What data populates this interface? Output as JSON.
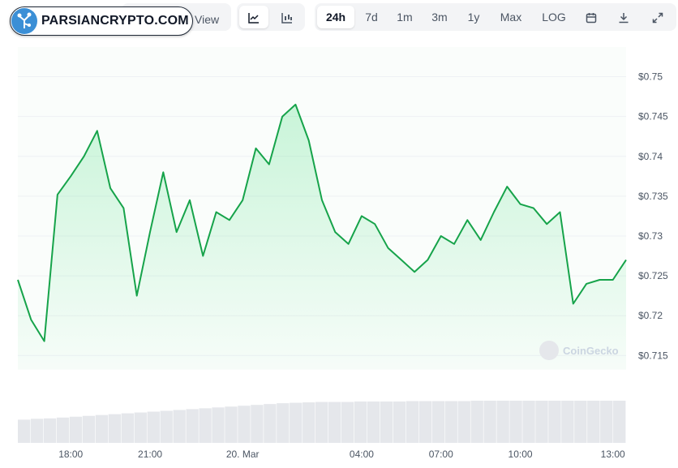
{
  "watermark_brand": "PARSIANCRYPTO.COM",
  "view_label": "View",
  "chart_type_icons": [
    "line-chart-icon",
    "candlestick-chart-icon"
  ],
  "ranges": [
    "24h",
    "7d",
    "1m",
    "3m",
    "1y",
    "Max",
    "LOG"
  ],
  "active_range": "24h",
  "tool_icons": [
    "calendar-icon",
    "download-icon",
    "fullscreen-icon"
  ],
  "source_watermark": "CoinGecko",
  "colors": {
    "line": "#16a34a",
    "fill": "#dcfce7",
    "volume": "#e5e7eb"
  },
  "chart_data": {
    "type": "line",
    "x": [
      "15:50",
      "16:30",
      "17:10",
      "17:40",
      "18:00",
      "18:30",
      "19:00",
      "19:30",
      "20:00",
      "20:30",
      "21:00",
      "21:20",
      "21:40",
      "22:10",
      "22:40",
      "23:10",
      "23:40",
      "20. Mar",
      "00:30",
      "00:50",
      "01:10",
      "01:30",
      "01:50",
      "02:20",
      "03:00",
      "03:30",
      "04:00",
      "04:30",
      "05:00",
      "05:30",
      "06:00",
      "06:30",
      "07:00",
      "07:30",
      "08:00",
      "08:30",
      "09:00",
      "09:30",
      "10:00",
      "10:30",
      "11:00",
      "11:30",
      "12:00",
      "12:10",
      "12:30",
      "13:00",
      "13:10"
    ],
    "values": [
      0.7245,
      0.7195,
      0.7168,
      0.7352,
      0.7375,
      0.74,
      0.7432,
      0.736,
      0.7335,
      0.7225,
      0.7305,
      0.738,
      0.7305,
      0.7345,
      0.7275,
      0.733,
      0.732,
      0.7345,
      0.741,
      0.739,
      0.745,
      0.7465,
      0.742,
      0.7345,
      0.7305,
      0.729,
      0.7325,
      0.7315,
      0.7285,
      0.727,
      0.7255,
      0.727,
      0.73,
      0.729,
      0.732,
      0.7295,
      0.733,
      0.7362,
      0.734,
      0.7335,
      0.7315,
      0.733,
      0.7215,
      0.724,
      0.7245,
      0.7245,
      0.727
    ],
    "volume": [
      0.55,
      0.57,
      0.58,
      0.6,
      0.62,
      0.64,
      0.66,
      0.68,
      0.7,
      0.72,
      0.74,
      0.76,
      0.78,
      0.8,
      0.82,
      0.84,
      0.86,
      0.88,
      0.9,
      0.92,
      0.94,
      0.95,
      0.96,
      0.97,
      0.97,
      0.97,
      0.98,
      0.98,
      0.98,
      0.98,
      0.99,
      0.99,
      0.99,
      0.99,
      0.99,
      1.0,
      1.0,
      1.0,
      1.0,
      1.0,
      1.0,
      1.0,
      1.0,
      1.0,
      1.0,
      1.0,
      1.0
    ],
    "x_tick_labels": [
      "18:00",
      "21:00",
      "20. Mar",
      "04:00",
      "07:00",
      "10:00",
      "13:00"
    ],
    "y_ticks": [
      0.715,
      0.72,
      0.725,
      0.73,
      0.735,
      0.74,
      0.745,
      0.75
    ],
    "y_tick_labels": [
      "$0.715",
      "$0.72",
      "$0.725",
      "$0.73",
      "$0.735",
      "$0.74",
      "$0.745",
      "$0.75"
    ],
    "ylim": [
      0.7133,
      0.7525
    ],
    "grid": true,
    "title": "",
    "xlabel": "",
    "ylabel": ""
  }
}
